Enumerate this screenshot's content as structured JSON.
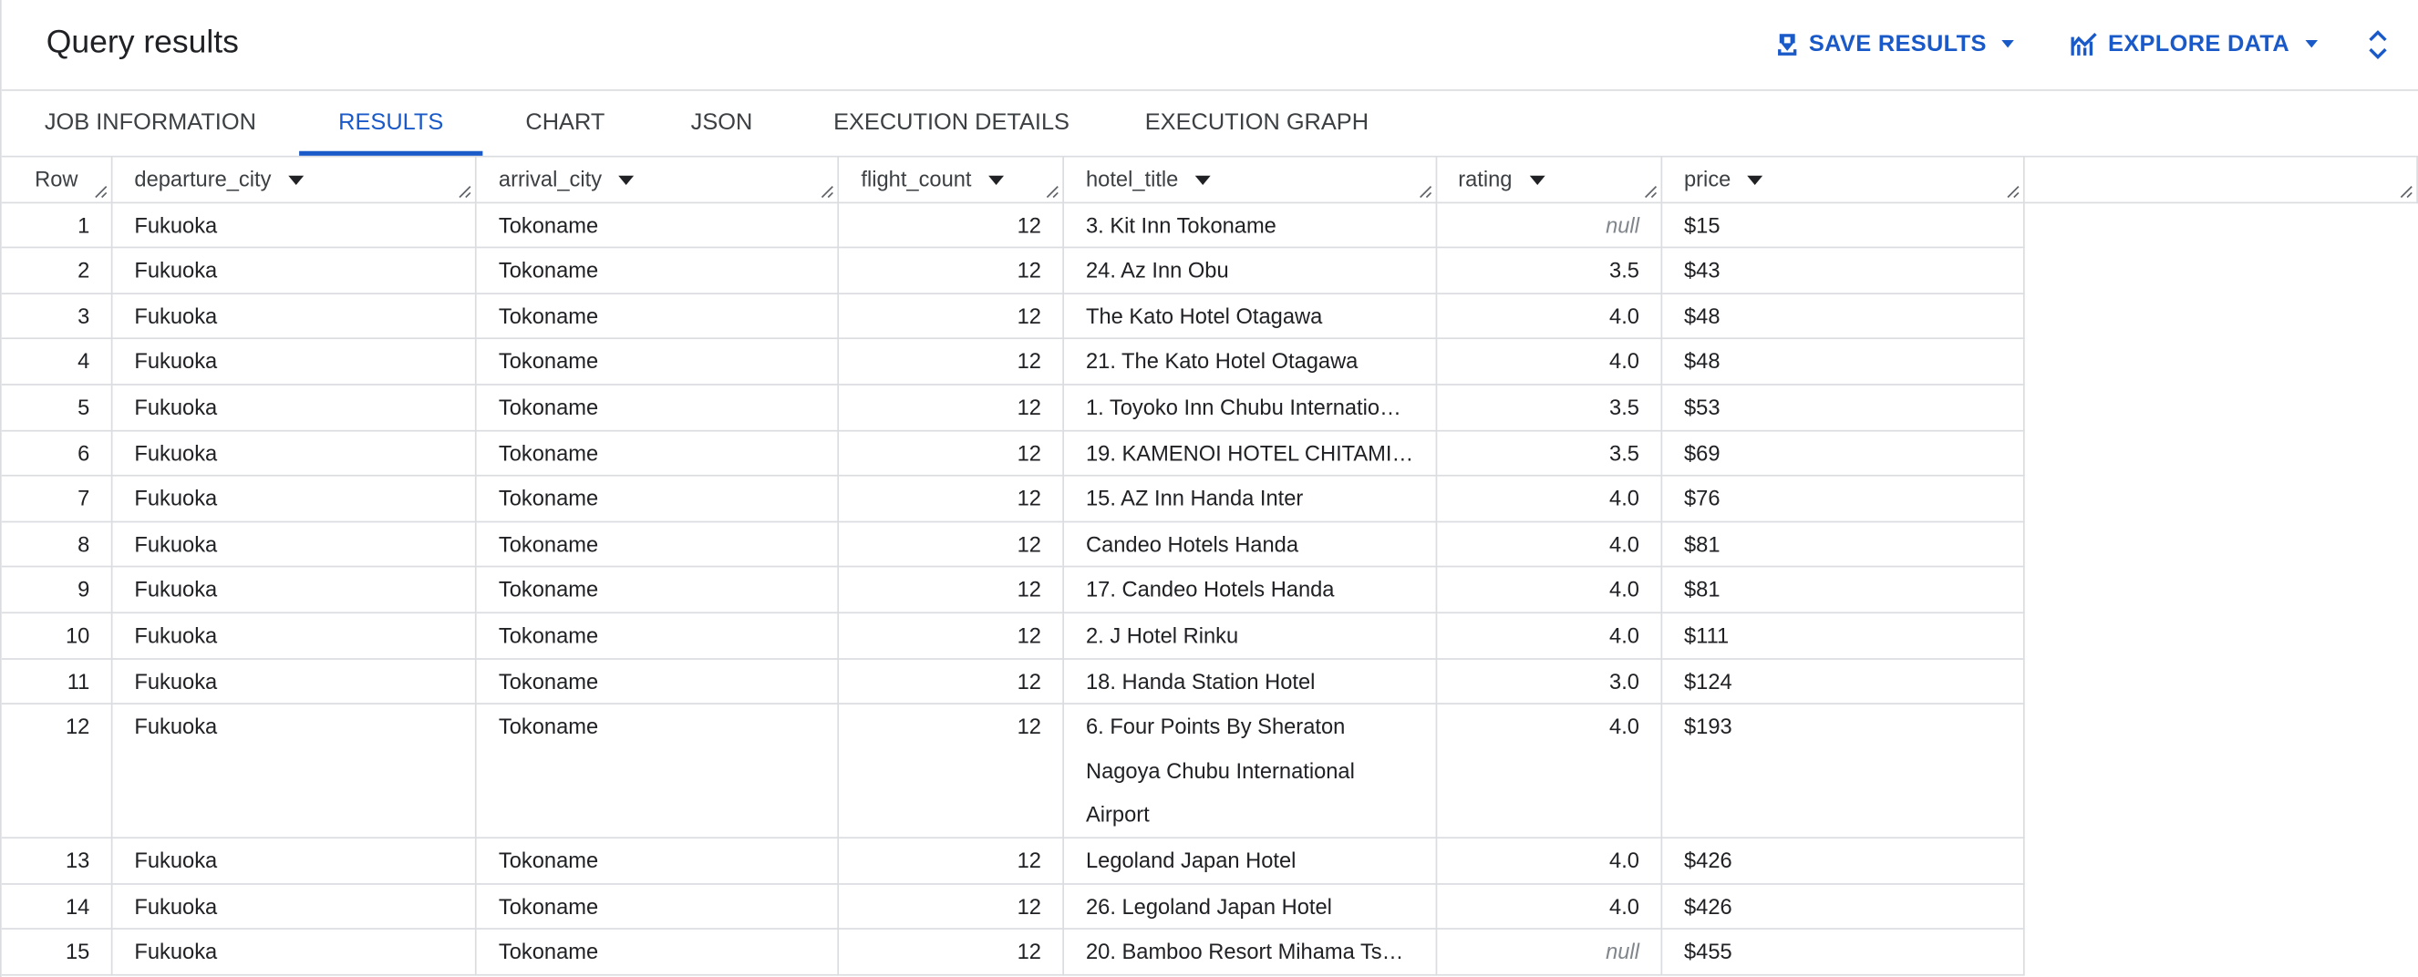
{
  "header": {
    "title": "Query results",
    "actions": [
      "SAVE RESULTS",
      "EXPLORE DATA"
    ]
  },
  "tabs": {
    "items": [
      "JOB INFORMATION",
      "RESULTS",
      "CHART",
      "JSON",
      "EXECUTION DETAILS",
      "EXECUTION GRAPH"
    ],
    "active": 1
  },
  "table": {
    "columns": [
      "Row",
      "departure_city",
      "arrival_city",
      "flight_count",
      "hotel_title",
      "rating",
      "price"
    ],
    "null_text": "null",
    "rows": [
      [
        "1",
        "Fukuoka",
        "Tokoname",
        "12",
        "3. Kit Inn Tokoname",
        null,
        "$15"
      ],
      [
        "2",
        "Fukuoka",
        "Tokoname",
        "12",
        "24. Az Inn Obu",
        "3.5",
        "$43"
      ],
      [
        "3",
        "Fukuoka",
        "Tokoname",
        "12",
        "The Kato Hotel Otagawa",
        "4.0",
        "$48"
      ],
      [
        "4",
        "Fukuoka",
        "Tokoname",
        "12",
        "21. The Kato Hotel Otagawa",
        "4.0",
        "$48"
      ],
      [
        "5",
        "Fukuoka",
        "Tokoname",
        "12",
        "1. Toyoko Inn Chubu Internatio…",
        "3.5",
        "$53"
      ],
      [
        "6",
        "Fukuoka",
        "Tokoname",
        "12",
        "19. KAMENOI HOTEL CHITAMI…",
        "3.5",
        "$69"
      ],
      [
        "7",
        "Fukuoka",
        "Tokoname",
        "12",
        "15. AZ Inn Handa Inter",
        "4.0",
        "$76"
      ],
      [
        "8",
        "Fukuoka",
        "Tokoname",
        "12",
        "Candeo Hotels Handa",
        "4.0",
        "$81"
      ],
      [
        "9",
        "Fukuoka",
        "Tokoname",
        "12",
        "17. Candeo Hotels Handa",
        "4.0",
        "$81"
      ],
      [
        "10",
        "Fukuoka",
        "Tokoname",
        "12",
        "2. J Hotel Rinku",
        "4.0",
        "$111"
      ],
      [
        "11",
        "Fukuoka",
        "Tokoname",
        "12",
        "18. Handa Station Hotel",
        "3.0",
        "$124"
      ],
      [
        "12",
        "Fukuoka",
        "Tokoname",
        "12",
        "6. Four Points By Sheraton Nagoya Chubu International Airport",
        "4.0",
        "$193"
      ],
      [
        "13",
        "Fukuoka",
        "Tokoname",
        "12",
        "Legoland Japan Hotel",
        "4.0",
        "$426"
      ],
      [
        "14",
        "Fukuoka",
        "Tokoname",
        "12",
        "26. Legoland Japan Hotel",
        "4.0",
        "$426"
      ],
      [
        "15",
        "Fukuoka",
        "Tokoname",
        "12",
        "20. Bamboo Resort Mihama Ts…",
        null,
        "$455"
      ]
    ]
  }
}
